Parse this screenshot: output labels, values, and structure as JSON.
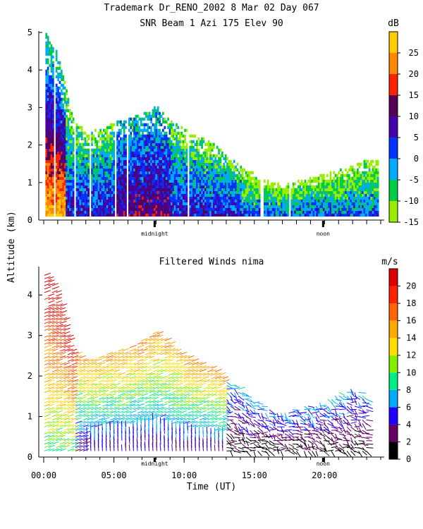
{
  "header": {
    "title_line1": "Trademark Dr_RENO_2002   8 Mar 02 Day 067",
    "title_line2": "SNR Beam 1 Azi 175 Elev 90"
  },
  "shared_y_label": "Altitude (km)",
  "chart_data": [
    {
      "type": "heatmap",
      "title": "SNR Beam 1 Azi 175 Elev 90",
      "ylabel": "Altitude (km)",
      "ylim": [
        0,
        5
      ],
      "yticks": [
        "0",
        "1",
        "2",
        "3",
        "4",
        "5"
      ],
      "xlim_hours": [
        0,
        24
      ],
      "time_markers": [
        {
          "label": "midnight",
          "hour": 7.9
        },
        {
          "label": "noon",
          "hour": 19.9
        }
      ],
      "colorbar": {
        "unit": "dB",
        "range": [
          -15,
          30
        ],
        "ticks": [
          "-15",
          "-10",
          "-5",
          "0",
          "5",
          "10",
          "15",
          "20",
          "25"
        ],
        "bands": [
          {
            "from": -15,
            "to": -10,
            "color": "#99ee00"
          },
          {
            "from": -10,
            "to": -5,
            "color": "#00cc44"
          },
          {
            "from": -5,
            "to": 0,
            "color": "#00aaff"
          },
          {
            "from": 0,
            "to": 5,
            "color": "#0033ff"
          },
          {
            "from": 5,
            "to": 10,
            "color": "#4400aa"
          },
          {
            "from": 10,
            "to": 15,
            "color": "#550055"
          },
          {
            "from": 15,
            "to": 20,
            "color": "#ff2200"
          },
          {
            "from": 20,
            "to": 25,
            "color": "#ff8800"
          },
          {
            "from": 25,
            "to": 30,
            "color": "#ffcc00"
          }
        ]
      },
      "echo_top_km": [
        [
          0,
          5.0
        ],
        [
          1,
          4.4
        ],
        [
          2,
          2.7
        ],
        [
          3,
          2.3
        ],
        [
          4,
          2.4
        ],
        [
          5,
          2.6
        ],
        [
          6,
          2.7
        ],
        [
          7,
          2.8
        ],
        [
          8,
          3.0
        ],
        [
          9,
          2.6
        ],
        [
          10,
          2.4
        ],
        [
          11,
          2.2
        ],
        [
          12,
          2.0
        ],
        [
          13,
          1.7
        ],
        [
          14,
          1.4
        ],
        [
          15,
          1.2
        ],
        [
          16,
          1.0
        ],
        [
          17,
          0.9
        ],
        [
          18,
          1.0
        ],
        [
          19,
          1.1
        ],
        [
          20,
          1.2
        ],
        [
          21,
          1.3
        ],
        [
          22,
          1.4
        ],
        [
          23,
          1.6
        ]
      ]
    },
    {
      "type": "scatter",
      "title": "Filtered Winds nima",
      "xlabel": "Time (UT)",
      "ylabel": "Altitude (km)",
      "ylim": [
        0,
        4.7
      ],
      "yticks": [
        "0",
        "1",
        "2",
        "3",
        "4"
      ],
      "xlim_hours": [
        0,
        24
      ],
      "xticks": [
        "00:00",
        "05:00",
        "10:00",
        "15:00",
        "20:00"
      ],
      "time_markers": [
        {
          "label": "midnight",
          "hour": 7.9
        },
        {
          "label": "noon",
          "hour": 19.9
        }
      ],
      "colorbar": {
        "unit": "m/s",
        "range": [
          0,
          22
        ],
        "ticks": [
          "0",
          "2",
          "4",
          "6",
          "8",
          "10",
          "12",
          "14",
          "16",
          "18",
          "20"
        ],
        "bands": [
          {
            "from": 0,
            "to": 2,
            "color": "#000000"
          },
          {
            "from": 2,
            "to": 4,
            "color": "#660066"
          },
          {
            "from": 4,
            "to": 6,
            "color": "#2200ff"
          },
          {
            "from": 6,
            "to": 8,
            "color": "#00aaff"
          },
          {
            "from": 8,
            "to": 10,
            "color": "#00ee88"
          },
          {
            "from": 10,
            "to": 12,
            "color": "#88ee00"
          },
          {
            "from": 12,
            "to": 14,
            "color": "#ffdd00"
          },
          {
            "from": 14,
            "to": 16,
            "color": "#ffaa00"
          },
          {
            "from": 16,
            "to": 18,
            "color": "#ff6600"
          },
          {
            "from": 18,
            "to": 20,
            "color": "#ff2200"
          },
          {
            "from": 20,
            "to": 22,
            "color": "#dd0000"
          }
        ]
      },
      "wind_top_km": [
        [
          0,
          4.6
        ],
        [
          1,
          4.0
        ],
        [
          2,
          2.6
        ],
        [
          3,
          2.4
        ],
        [
          4,
          2.5
        ],
        [
          5,
          2.6
        ],
        [
          6,
          2.7
        ],
        [
          7,
          2.9
        ],
        [
          8,
          3.1
        ],
        [
          9,
          2.8
        ],
        [
          10,
          2.5
        ],
        [
          11,
          2.3
        ],
        [
          12,
          2.2
        ],
        [
          13,
          1.9
        ],
        [
          14,
          1.7
        ],
        [
          15,
          1.4
        ],
        [
          16,
          1.2
        ],
        [
          17,
          1.1
        ],
        [
          18,
          1.2
        ],
        [
          19,
          1.3
        ],
        [
          20,
          1.4
        ],
        [
          21,
          1.6
        ],
        [
          22,
          1.7
        ],
        [
          23,
          1.5
        ]
      ]
    }
  ]
}
